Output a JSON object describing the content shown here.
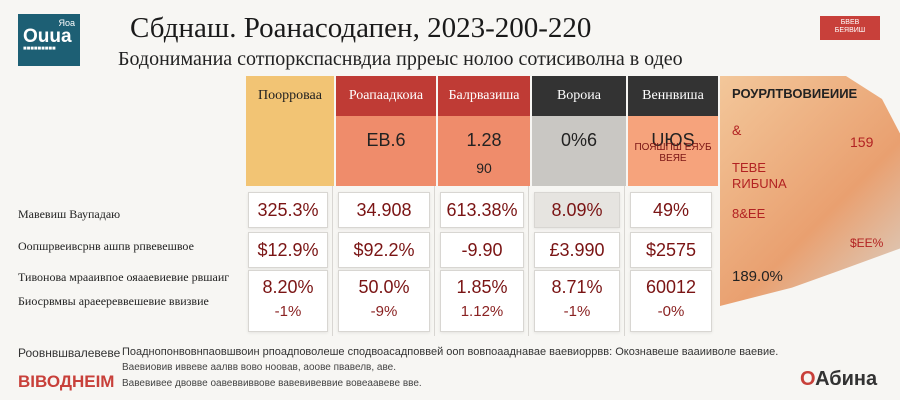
{
  "logo": {
    "small": "Яоа",
    "big": "Ouua",
    "tiny": "■■■■■■■■■"
  },
  "title": "Сбднаш. Роанасодапен, 2023-200-220",
  "subtitle": "Бодониманиа сотпоркспаснвдиа прреыс нолоо сотисиволна в одео",
  "badge": {
    "line1": "БВЕВ",
    "line2": "БЕЯВИШ"
  },
  "colors": {
    "yellow": "#f2c474",
    "red_head": "#bf3b35",
    "dark_head": "#333333",
    "pink": "#ef8c6b",
    "peach": "#f6a37c",
    "gray": "#c9c7c3",
    "cell_text": "#7a1414"
  },
  "chart_data": {
    "type": "table",
    "title": "Сбднаш. Роанасодапен, 2023-200-220",
    "columns": [
      "Поорроваа",
      "Роапаадкоиа",
      "Балрвазиша",
      "Вороиа",
      "Веннвиша"
    ],
    "top_values": [
      "",
      "ЕВ.6",
      "1.28",
      "0%6",
      "UЮS"
    ],
    "top_sub": [
      "",
      "",
      "90",
      "",
      "ПОЯШПШ ЕЯУБ ВЕЯЕ"
    ],
    "rows": [
      {
        "label": "Мавевиш Ваупадаю",
        "values": [
          "325.3%",
          "34.908",
          "613.38%",
          "8.09%",
          "49%"
        ],
        "changes": [
          "",
          "",
          "",
          "",
          ""
        ]
      },
      {
        "label": "Оопшрвеивсрнв ашпв рпвевешвое",
        "values": [
          "$12.9%",
          "$92.2%",
          "-9.90",
          "£3.990",
          "$2575"
        ],
        "changes": [
          "",
          "",
          "",
          "",
          ""
        ]
      },
      {
        "label": "Тивонова мрааивпое ояааевиевие рвшаиг",
        "values": [
          "8.20%",
          "50.0%",
          "1.85%",
          "8.71%",
          "60012"
        ],
        "changes": [
          "-1%",
          "-9%",
          "1.12%",
          "-1%",
          "-0%"
        ]
      },
      {
        "label": "Биосрвмвы араеереввешевие ввизвие",
        "values": [
          "",
          "",
          "",
          "",
          ""
        ],
        "changes": [
          "",
          "",
          "",
          "",
          ""
        ]
      }
    ]
  },
  "map": {
    "title": "РОУРЛТВОВИЕИИЕ",
    "v1": "&",
    "v2": "159",
    "label1": "ТЕВЕ",
    "label2": "RИБUNА",
    "v3": "8&ЕЕ",
    "v4": "$ЕЕ%",
    "v5": "189.0%"
  },
  "footer": {
    "label": "Роовнвшвалевеве",
    "brand": "ВІВОДНЕІМ",
    "note1": "Поаднопонвовнпаовшвоин рпоадповолеше сподвоасадповвей ооп вовпоааднавае ваевиоррвв: Окознавеше вааииволе ваевие.",
    "note2": "Ваевиовив иввеве аалвв вово ноовав, аоове пвавелв, аве.",
    "note3": "Вавевивее двовве оавеввиввове вавевивеввие вовеаавеве вве.",
    "logo_o": "О",
    "logo_rest": "Абина"
  }
}
